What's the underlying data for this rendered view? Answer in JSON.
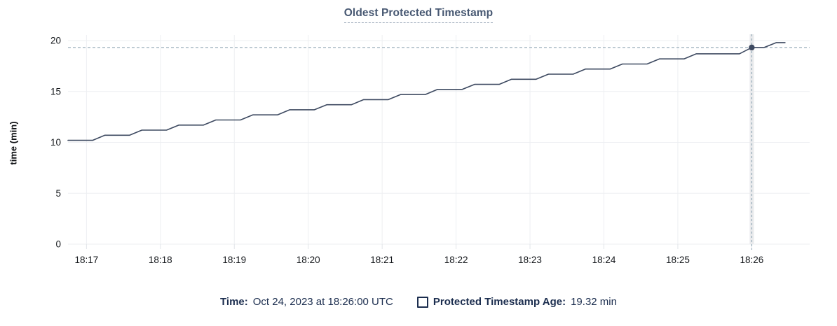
{
  "colors": {
    "background": "#ffffff",
    "line": "#3e4a61",
    "dot": "#3e4a61",
    "grid": "#edeff2",
    "tick_stub": "#e2e5e9",
    "crosshair": "#9cafbc",
    "cursor_band": "#e9eaec",
    "title": "#475872",
    "title_underline": "#9aa7b8",
    "legend_navy": "#1c2e4f",
    "axis_text": "#15181c"
  },
  "legend": {
    "time_label": "Time:",
    "time_value": "Oct 24, 2023 at 18:26:00 UTC",
    "series_label": "Protected Timestamp Age:",
    "series_value": "19.32 min"
  },
  "chart_data": {
    "type": "line",
    "title": "Oldest Protected Timestamp",
    "xlabel": "",
    "ylabel": "time (min)",
    "ylim": [
      0,
      20
    ],
    "y_ticks": [
      0,
      5,
      10,
      15,
      20
    ],
    "x_ticks": [
      "18:17",
      "18:18",
      "18:19",
      "18:20",
      "18:21",
      "18:22",
      "18:23",
      "18:24",
      "18:25",
      "18:26"
    ],
    "x_range": [
      "18:16:45",
      "18:26:47"
    ],
    "grid": true,
    "legend_position": "bottom",
    "series": [
      {
        "name": "Protected Timestamp Age",
        "unit": "min",
        "points": [
          [
            "18:16:45",
            10.2
          ],
          [
            "18:17:05",
            10.2
          ],
          [
            "18:17:15",
            10.7
          ],
          [
            "18:17:35",
            10.7
          ],
          [
            "18:17:45",
            11.2
          ],
          [
            "18:18:05",
            11.2
          ],
          [
            "18:18:15",
            11.7
          ],
          [
            "18:18:35",
            11.7
          ],
          [
            "18:18:45",
            12.2
          ],
          [
            "18:19:05",
            12.2
          ],
          [
            "18:19:15",
            12.7
          ],
          [
            "18:19:35",
            12.7
          ],
          [
            "18:19:45",
            13.2
          ],
          [
            "18:20:05",
            13.2
          ],
          [
            "18:20:15",
            13.7
          ],
          [
            "18:20:35",
            13.7
          ],
          [
            "18:20:45",
            14.2
          ],
          [
            "18:21:05",
            14.2
          ],
          [
            "18:21:15",
            14.7
          ],
          [
            "18:21:35",
            14.7
          ],
          [
            "18:21:45",
            15.2
          ],
          [
            "18:22:05",
            15.2
          ],
          [
            "18:22:15",
            15.7
          ],
          [
            "18:22:35",
            15.7
          ],
          [
            "18:22:45",
            16.2
          ],
          [
            "18:23:05",
            16.2
          ],
          [
            "18:23:15",
            16.7
          ],
          [
            "18:23:35",
            16.7
          ],
          [
            "18:23:45",
            17.2
          ],
          [
            "18:24:05",
            17.2
          ],
          [
            "18:24:15",
            17.7
          ],
          [
            "18:24:35",
            17.7
          ],
          [
            "18:24:45",
            18.2
          ],
          [
            "18:25:05",
            18.2
          ],
          [
            "18:25:15",
            18.7
          ],
          [
            "18:25:50",
            18.7
          ],
          [
            "18:26:00",
            19.32
          ],
          [
            "18:26:10",
            19.32
          ],
          [
            "18:26:20",
            19.8
          ],
          [
            "18:26:27",
            19.8
          ]
        ]
      }
    ],
    "cursor": {
      "time": "18:26:00",
      "value": 19.32,
      "time_label": "Oct 24, 2023 at 18:26:00 UTC",
      "value_label": "19.32 min"
    }
  }
}
